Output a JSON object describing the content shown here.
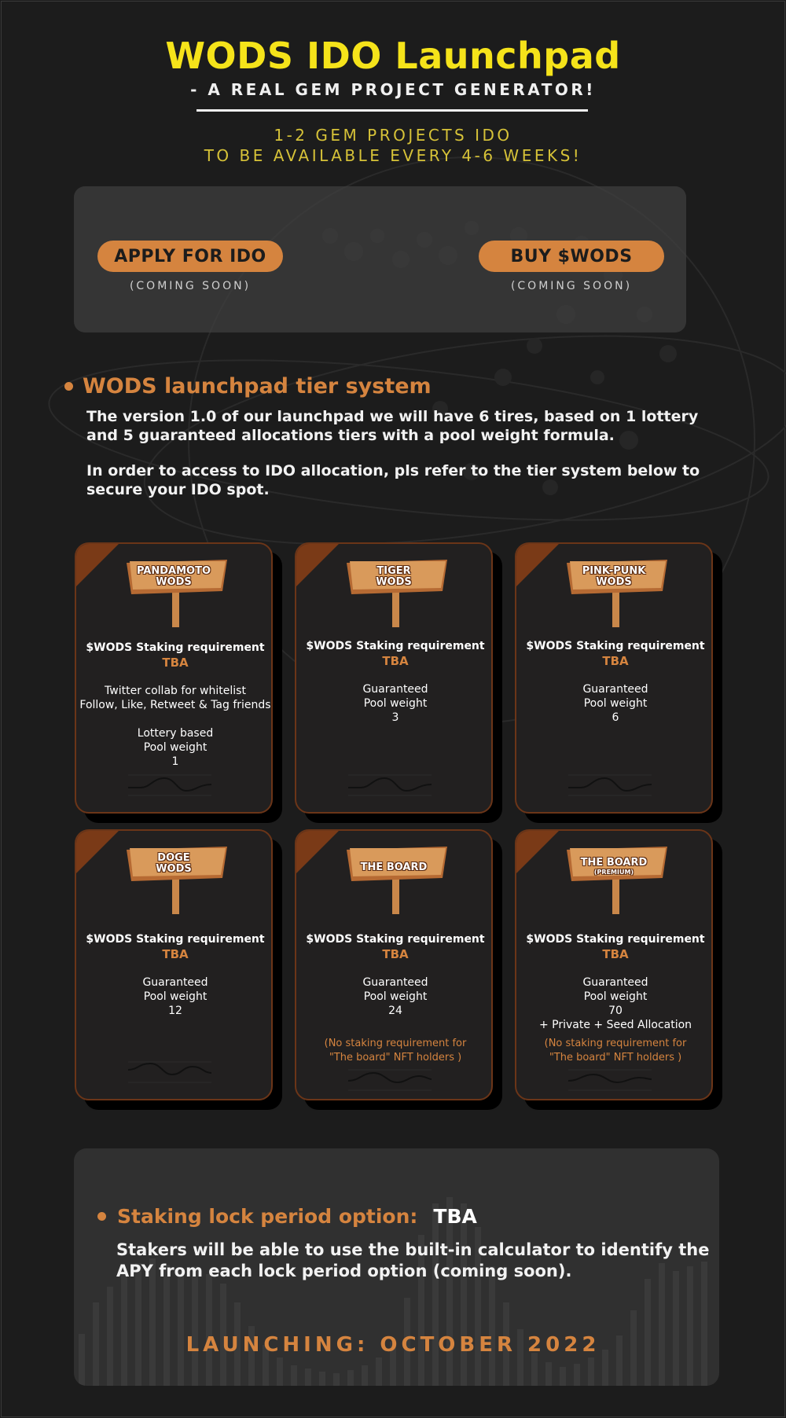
{
  "header": {
    "title": "WODS IDO Launchpad",
    "subtitle": "- A REAL GEM PROJECT GENERATOR!",
    "tagline_line1": "1-2 GEM PROJECTS IDO",
    "tagline_line2": "TO BE AVAILABLE EVERY 4-6 WEEKS!"
  },
  "actions": {
    "apply_label": "APPLY FOR IDO",
    "apply_status": "(COMING SOON)",
    "buy_label": "BUY $WODS",
    "buy_status": "(COMING SOON)"
  },
  "tier_section": {
    "heading": "WODS launchpad tier system",
    "paragraph1": "The version 1.0 of our launchpad we will have 6 tires, based on 1 lottery and 5 guaranteed allocations tiers with a pool weight formula.",
    "paragraph2": "In order to access to IDO allocation, pls refer to the tier system below to secure your IDO spot."
  },
  "tiers": [
    {
      "sign_line1": "PANDAMOTO",
      "sign_line2": "WODS",
      "requirement": "$WODS Staking requirement",
      "requirement_value": "TBA",
      "detail1": "Twitter collab for whitelist",
      "detail2": "Follow, Like, Retweet & Tag friends",
      "detail3": "",
      "detail4": "Lottery based",
      "detail5": "Pool weight",
      "detail6": "1"
    },
    {
      "sign_line1": "TIGER",
      "sign_line2": "WODS",
      "requirement": "$WODS Staking requirement",
      "requirement_value": "TBA",
      "detail1": "Guaranteed",
      "detail2": "Pool weight",
      "detail3": "3"
    },
    {
      "sign_line1": "PINK-PUNK",
      "sign_line2": "WODS",
      "requirement": "$WODS Staking requirement",
      "requirement_value": "TBA",
      "detail1": "Guaranteed",
      "detail2": "Pool weight",
      "detail3": "6"
    },
    {
      "sign_line1": "DOGE",
      "sign_line2": "WODS",
      "requirement": "$WODS Staking requirement",
      "requirement_value": "TBA",
      "detail1": "Guaranteed",
      "detail2": "Pool weight",
      "detail3": "12"
    },
    {
      "sign_line1": "THE BOARD",
      "sign_line2": "",
      "requirement": "$WODS Staking requirement",
      "requirement_value": "TBA",
      "detail1": "Guaranteed",
      "detail2": "Pool weight",
      "detail3": "24",
      "note1": "(No staking requirement for",
      "note2": "\"The board\" NFT holders )"
    },
    {
      "sign_line1": "THE BOARD",
      "sign_line2": "(PREMIUM)",
      "requirement": "$WODS Staking requirement",
      "requirement_value": "TBA",
      "detail1": "Guaranteed",
      "detail2": "Pool weight",
      "detail3": "70",
      "detail4": "+ Private + Seed Allocation",
      "note1": "(No staking requirement for",
      "note2": "\"The board\" NFT holders )"
    }
  ],
  "staking": {
    "heading": "Staking lock period option:",
    "heading_value": "TBA",
    "description": "Stakers will be able to use the built-in calculator to identify the APY from each lock period option (coming soon)."
  },
  "launch": {
    "text": "LAUNCHING: OCTOBER 2022"
  },
  "colors": {
    "background": "#1c1c1c",
    "title_yellow": "#f5e31a",
    "accent_orange": "#d5843f",
    "card_border": "#6b3518",
    "panel_gray": "#303030"
  }
}
